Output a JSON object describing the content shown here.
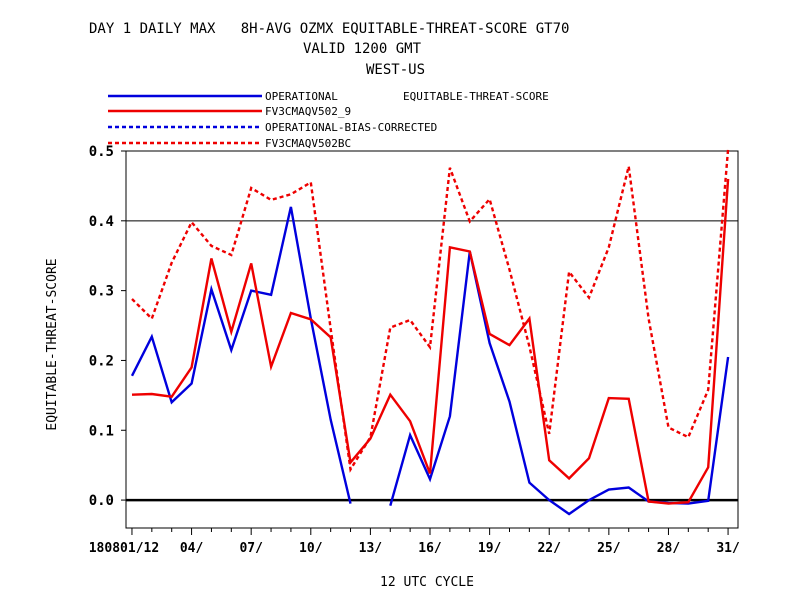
{
  "chart_data": {
    "type": "line",
    "title": "DAY 1 DAILY MAX   8H-AVG OZMX EQUITABLE-THREAT-SCORE GT70",
    "subtitle": "VALID 1200 GMT",
    "region": "WEST-US",
    "legend_header": "EQUITABLE-THREAT-SCORE",
    "xlabel": "12 UTC CYCLE",
    "ylabel": "EQUITABLE-THREAT-SCORE",
    "ylim": [
      -0.04,
      0.5
    ],
    "xlim": [
      0.7,
      31.5
    ],
    "yticks": [
      0.0,
      0.1,
      0.2,
      0.3,
      0.4,
      0.5
    ],
    "ytick_labels": [
      "0.0",
      "0.1",
      "0.2",
      "0.3",
      "0.4",
      "0.5"
    ],
    "xticks": [
      1,
      4,
      7,
      10,
      13,
      16,
      19,
      22,
      25,
      28,
      31
    ],
    "xtick_labels": [
      "180801/12",
      "04/",
      "07/",
      "10/",
      "13/",
      "16/",
      "19/",
      "22/",
      "25/",
      "28/",
      "31/"
    ],
    "reference_lines": [
      0.0,
      0.4
    ],
    "series": [
      {
        "name": "OPERATIONAL",
        "color": "#0000dd",
        "dash": "solid",
        "segments": [
          [
            [
              1,
              0.178
            ],
            [
              2,
              0.234
            ],
            [
              3,
              0.14
            ],
            [
              4,
              0.167
            ],
            [
              5,
              0.302
            ],
            [
              6,
              0.215
            ],
            [
              7,
              0.3
            ],
            [
              8,
              0.294
            ],
            [
              9,
              0.42
            ],
            [
              10,
              0.26
            ],
            [
              11,
              0.115
            ],
            [
              12,
              -0.005
            ]
          ],
          [
            [
              14,
              -0.008
            ],
            [
              15,
              0.093
            ],
            [
              16,
              0.03
            ],
            [
              17,
              0.12
            ],
            [
              18,
              0.356
            ],
            [
              19,
              0.225
            ],
            [
              20,
              0.141
            ],
            [
              21,
              0.025
            ],
            [
              22,
              0.0
            ],
            [
              23,
              -0.02
            ],
            [
              24,
              0.0
            ],
            [
              25,
              0.015
            ],
            [
              26,
              0.018
            ],
            [
              27,
              -0.002
            ],
            [
              28,
              -0.004
            ],
            [
              29,
              -0.005
            ],
            [
              30,
              -0.001
            ],
            [
              31,
              0.205
            ]
          ]
        ]
      },
      {
        "name": "FV3CMAQV502_9",
        "color": "#ee0000",
        "dash": "solid",
        "segments": [
          [
            [
              1,
              0.151
            ],
            [
              2,
              0.152
            ],
            [
              3,
              0.148
            ],
            [
              4,
              0.19
            ],
            [
              5,
              0.346
            ],
            [
              6,
              0.241
            ],
            [
              7,
              0.339
            ],
            [
              8,
              0.191
            ],
            [
              9,
              0.268
            ],
            [
              10,
              0.259
            ],
            [
              11,
              0.233
            ],
            [
              12,
              0.054
            ],
            [
              13,
              0.088
            ],
            [
              14,
              0.151
            ],
            [
              15,
              0.113
            ],
            [
              16,
              0.038
            ],
            [
              17,
              0.362
            ],
            [
              18,
              0.356
            ],
            [
              19,
              0.238
            ],
            [
              20,
              0.222
            ],
            [
              21,
              0.26
            ],
            [
              22,
              0.057
            ],
            [
              23,
              0.031
            ],
            [
              24,
              0.06
            ],
            [
              25,
              0.146
            ],
            [
              26,
              0.145
            ],
            [
              27,
              -0.002
            ],
            [
              28,
              -0.005
            ],
            [
              29,
              -0.003
            ],
            [
              30,
              0.047
            ],
            [
              31,
              0.46
            ]
          ]
        ]
      },
      {
        "name": "OPERATIONAL-BIAS-CORRECTED",
        "color": "#0000dd",
        "dash": "dashed",
        "segments": []
      },
      {
        "name": "FV3CMAQV502BC",
        "color": "#ee0000",
        "dash": "dashed",
        "segments": [
          [
            [
              1,
              0.288
            ],
            [
              2,
              0.26
            ],
            [
              3,
              0.34
            ],
            [
              4,
              0.398
            ],
            [
              5,
              0.364
            ],
            [
              6,
              0.351
            ],
            [
              7,
              0.447
            ],
            [
              8,
              0.43
            ],
            [
              9,
              0.438
            ],
            [
              10,
              0.455
            ],
            [
              11,
              0.245
            ],
            [
              12,
              0.044
            ],
            [
              13,
              0.09
            ],
            [
              14,
              0.247
            ],
            [
              15,
              0.258
            ],
            [
              16,
              0.219
            ],
            [
              17,
              0.476
            ],
            [
              18,
              0.399
            ],
            [
              19,
              0.431
            ],
            [
              20,
              0.33
            ],
            [
              21,
              0.22
            ],
            [
              22,
              0.095
            ],
            [
              23,
              0.327
            ],
            [
              24,
              0.29
            ],
            [
              25,
              0.362
            ],
            [
              26,
              0.478
            ],
            [
              27,
              0.26
            ],
            [
              28,
              0.104
            ],
            [
              29,
              0.09
            ],
            [
              30,
              0.158
            ],
            [
              31,
              0.503
            ]
          ]
        ]
      }
    ]
  }
}
